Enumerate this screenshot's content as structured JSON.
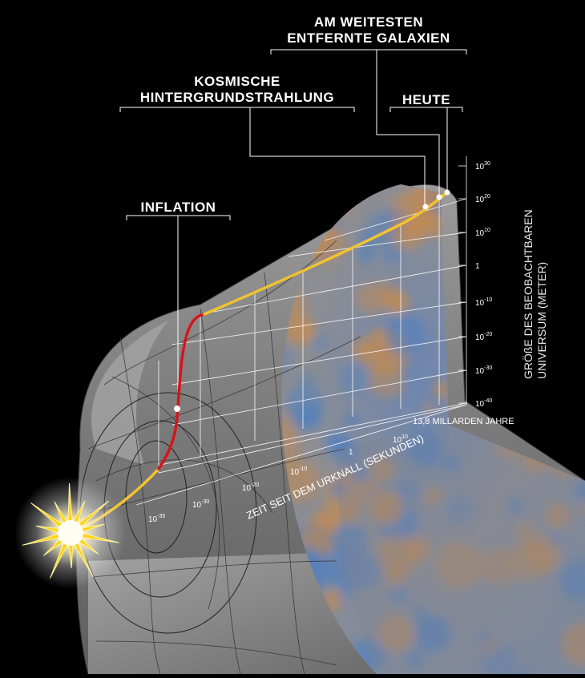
{
  "callouts": {
    "galaxies": {
      "line1": "AM WEITESTEN",
      "line2": "ENTFERNTE GALAXIEN"
    },
    "cmb": {
      "line1": "KOSMISCHE",
      "line2": "HINTERGRUNDSTRAHLUNG"
    },
    "today": {
      "label": "HEUTE"
    },
    "inflation": {
      "label": "INFLATION"
    }
  },
  "axes": {
    "y_label_line1": "GRÖßE DES BEOBACHTBAREN",
    "y_label_line2": "UNIVERSUM (METER)",
    "x_label": "ZEIT SEIT DEM URKNALL (SEKUNDEN)",
    "x_end_label": "13,8 MILLARDEN JAHRE",
    "y_ticks": [
      {
        "base": "10",
        "exp": "30"
      },
      {
        "base": "10",
        "exp": "20"
      },
      {
        "base": "10",
        "exp": "10"
      },
      {
        "base": "1",
        "exp": ""
      },
      {
        "base": "10",
        "exp": "-10"
      },
      {
        "base": "10",
        "exp": "-20"
      },
      {
        "base": "10",
        "exp": "-30"
      },
      {
        "base": "10",
        "exp": "-40"
      }
    ],
    "x_ticks": [
      {
        "base": "10",
        "exp": "-35"
      },
      {
        "base": "10",
        "exp": "-30"
      },
      {
        "base": "10",
        "exp": "-20"
      },
      {
        "base": "10",
        "exp": "-10"
      },
      {
        "base": "1",
        "exp": ""
      },
      {
        "base": "10",
        "exp": "10"
      }
    ]
  },
  "colors": {
    "background": "#000000",
    "curve_expansion": "#f2c230",
    "curve_inflation": "#d4161c",
    "cylinder": "#8a8a8a",
    "grid": "#ffffff",
    "cmb_warm": "#c98a4a",
    "cmb_cool": "#4f7fc0"
  }
}
